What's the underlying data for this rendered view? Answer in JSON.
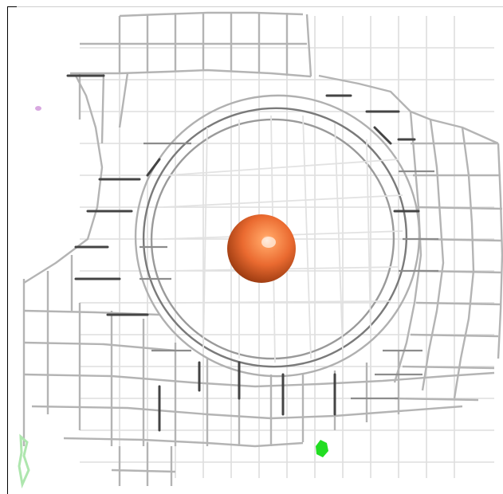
{
  "scene": {
    "background": "#ffffff",
    "mesh_colors": {
      "light": "#d4d4d4",
      "mid": "#a8a8a8",
      "dark": "#4a4a4a"
    },
    "sphere": {
      "color": "#e8642c",
      "highlight": "#ffb889",
      "shadow": "#a83c10"
    },
    "markers": {
      "green": "#22dd22",
      "pale_green": "#aee6ae",
      "magenta": "#d8a8e0"
    }
  }
}
